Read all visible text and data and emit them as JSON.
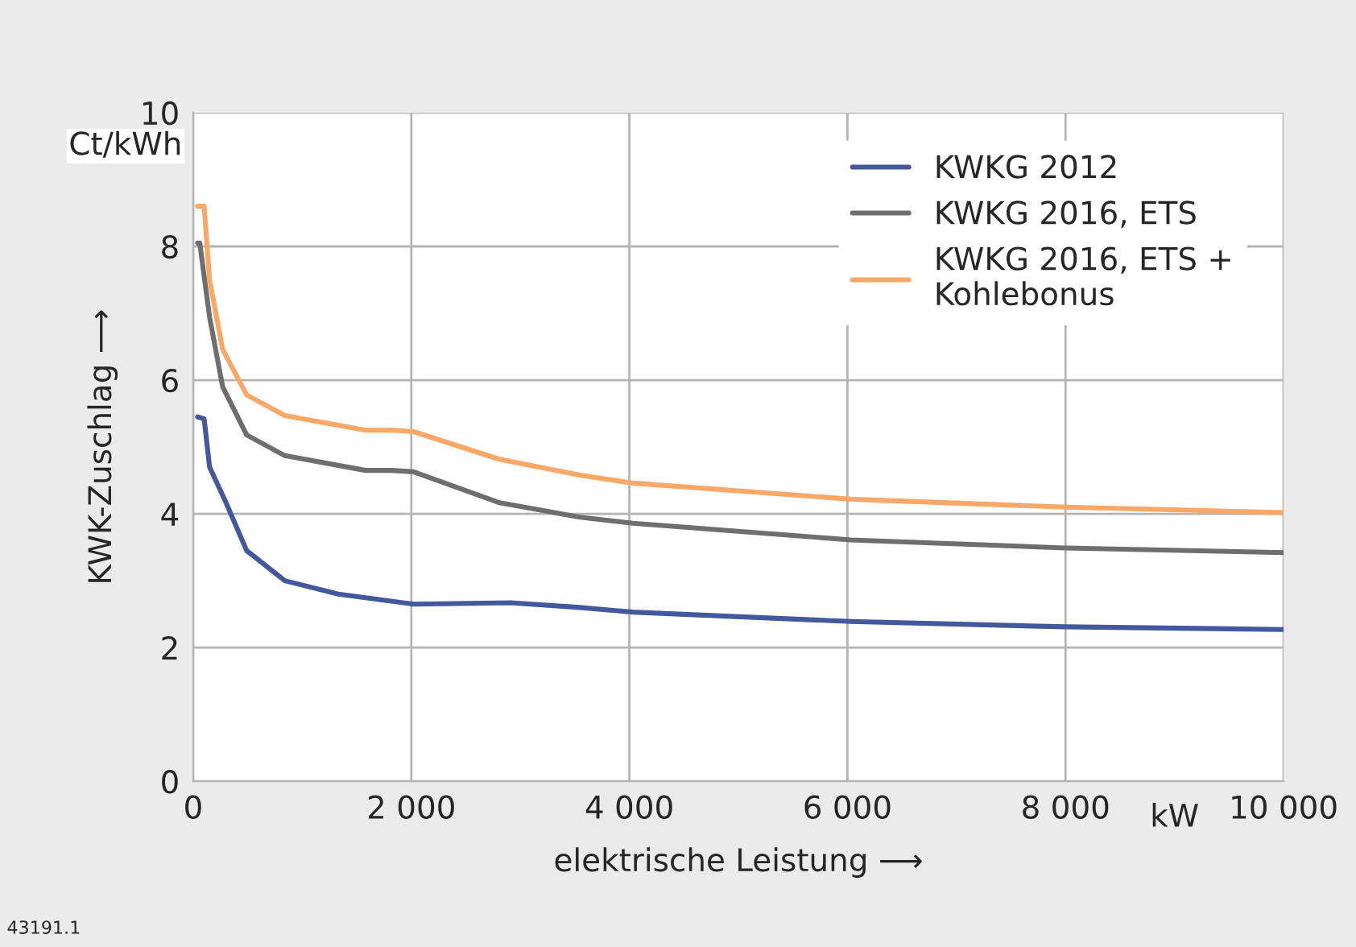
{
  "chart_data": {
    "type": "line",
    "xlabel": "elektrische Leistung ⟶",
    "ylabel": "KWK-Zuschlag ⟶",
    "annotations": [
      "Ct/kWh",
      "kW",
      "43191.1"
    ],
    "xlim": [
      0,
      10000
    ],
    "xticks": [
      0,
      {
        "value": 2000,
        "label": "2 000"
      },
      {
        "value": 4000,
        "label": "4 000"
      },
      {
        "value": 6000,
        "label": "6 000"
      },
      {
        "value": 8000,
        "label": "8 000"
      },
      {
        "value": 10000,
        "label": "10 000"
      }
    ],
    "ylim": [
      0,
      10
    ],
    "yticks": [
      0,
      2,
      4,
      6,
      8,
      10
    ],
    "grid": true,
    "legend": "top right",
    "marker": "none",
    "line_style": "solid",
    "series": [
      {
        "name": "KWKG 2012",
        "color": "#44589e",
        "x": [
          40,
          100,
          150,
          300,
          490,
          840,
          1330,
          2020,
          2910,
          3545,
          4030,
          6030,
          8000,
          10000
        ],
        "values": [
          5.45,
          5.42,
          4.7,
          4.17,
          3.45,
          3.0,
          2.8,
          2.65,
          2.67,
          2.6,
          2.53,
          2.39,
          2.31,
          2.27
        ]
      },
      {
        "name": "KWKG 2016, ETS",
        "color": "#6e6e6e",
        "x": [
          40,
          60,
          150,
          270,
          490,
          840,
          1580,
          1820,
          2020,
          2800,
          3545,
          4030,
          6030,
          8000,
          10000
        ],
        "values": [
          8.05,
          8.05,
          6.94,
          5.9,
          5.18,
          4.87,
          4.65,
          4.65,
          4.63,
          4.17,
          3.95,
          3.86,
          3.61,
          3.49,
          3.42
        ]
      },
      {
        "name": "KWKG 2016, ETS +\nKohlebonus",
        "color": "#f9a868",
        "x": [
          40,
          100,
          150,
          270,
          490,
          840,
          1580,
          1820,
          2020,
          2800,
          3545,
          4030,
          6030,
          8000,
          10000
        ],
        "values": [
          8.6,
          8.6,
          7.5,
          6.46,
          5.78,
          5.47,
          5.25,
          5.25,
          5.23,
          4.82,
          4.58,
          4.46,
          4.22,
          4.1,
          4.02
        ]
      }
    ]
  }
}
